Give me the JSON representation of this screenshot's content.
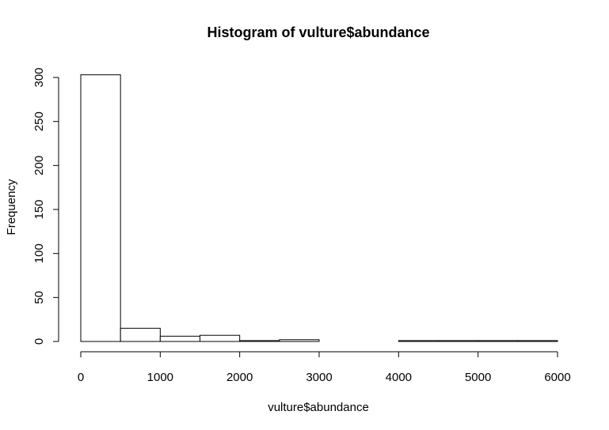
{
  "chart_data": {
    "type": "bar",
    "title": "Histogram of vulture$abundance",
    "xlabel": "vulture$abundance",
    "ylabel": "Frequency",
    "bins": [
      {
        "from": 0,
        "to": 500,
        "count": 303
      },
      {
        "from": 500,
        "to": 1000,
        "count": 15
      },
      {
        "from": 1000,
        "to": 1500,
        "count": 6
      },
      {
        "from": 1500,
        "to": 2000,
        "count": 7
      },
      {
        "from": 2000,
        "to": 2500,
        "count": 1
      },
      {
        "from": 2500,
        "to": 3000,
        "count": 2
      },
      {
        "from": 3000,
        "to": 3500,
        "count": 0
      },
      {
        "from": 3500,
        "to": 4000,
        "count": 0
      },
      {
        "from": 4000,
        "to": 4500,
        "count": 1
      },
      {
        "from": 4500,
        "to": 5000,
        "count": 1
      },
      {
        "from": 5000,
        "to": 5500,
        "count": 1
      },
      {
        "from": 5500,
        "to": 6000,
        "count": 1
      }
    ],
    "xlim": [
      0,
      6000
    ],
    "ylim": [
      0,
      300
    ],
    "xticks": [
      0,
      1000,
      2000,
      3000,
      4000,
      5000,
      6000
    ],
    "yticks": [
      0,
      50,
      100,
      150,
      200,
      250,
      300
    ],
    "grid": false
  }
}
